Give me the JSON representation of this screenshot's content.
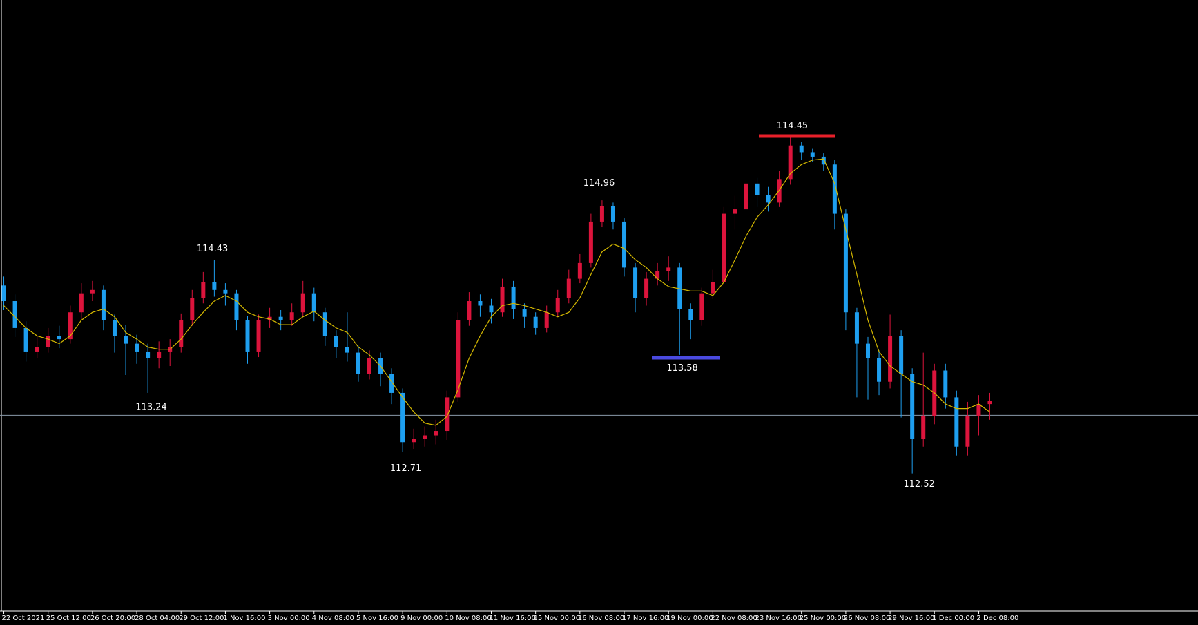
{
  "chart_data": {
    "type": "candlestick",
    "categories": [
      "22 Oct 2021",
      null,
      null,
      null,
      "25 Oct 12:00",
      null,
      null,
      null,
      "26 Oct 20:00",
      null,
      null,
      null,
      "28 Oct 04:00",
      null,
      null,
      null,
      "29 Oct 12:00",
      null,
      null,
      null,
      "1 Nov 16:00",
      null,
      null,
      null,
      "3 Nov 00:00",
      null,
      null,
      null,
      "4 Nov 08:00",
      null,
      null,
      null,
      "5 Nov 16:00",
      null,
      null,
      null,
      "9 Nov 00:00",
      null,
      null,
      null,
      "10 Nov 08:00",
      null,
      null,
      null,
      "11 Nov 16:00",
      null,
      null,
      null,
      "15 Nov 00:00",
      null,
      null,
      null,
      "16 Nov 08:00",
      null,
      null,
      null,
      "17 Nov 16:00",
      null,
      null,
      null,
      "19 Nov 00:00",
      null,
      null,
      null,
      "22 Nov 08:00",
      null,
      null,
      null,
      "23 Nov 16:00",
      null,
      null,
      null,
      "25 Nov 00:00",
      null,
      null,
      null,
      "26 Nov 08:00",
      null,
      null,
      null,
      "29 Nov 16:00",
      null,
      null,
      null,
      "1 Dec 00:00",
      null,
      null,
      null,
      "2 Dec 08:00",
      null
    ],
    "open": [
      114.2,
      114.06,
      113.82,
      113.61,
      113.65,
      113.75,
      113.72,
      113.96,
      114.13,
      114.16,
      113.89,
      113.75,
      113.68,
      113.61,
      113.55,
      113.61,
      113.65,
      113.89,
      114.09,
      114.23,
      114.16,
      114.13,
      113.89,
      113.61,
      113.89,
      113.92,
      113.89,
      113.96,
      114.13,
      113.96,
      113.75,
      113.65,
      113.6,
      113.41,
      113.55,
      113.41,
      113.24,
      112.8,
      112.83,
      112.86,
      112.9,
      113.2,
      113.89,
      114.06,
      114.02,
      113.96,
      114.19,
      113.99,
      113.92,
      113.82,
      113.96,
      114.09,
      114.26,
      114.4,
      114.77,
      114.91,
      114.77,
      114.36,
      114.09,
      114.26,
      114.33,
      114.36,
      113.99,
      113.89,
      114.13,
      114.23,
      114.84,
      114.88,
      115.11,
      115.01,
      114.94,
      115.15,
      115.45,
      115.39,
      115.35,
      115.28,
      114.84,
      113.96,
      113.68,
      113.55,
      113.34,
      113.75,
      113.41,
      112.83,
      113.03,
      113.44,
      113.2,
      112.76,
      113.03,
      113.14
    ],
    "high": [
      114.28,
      114.12,
      113.88,
      113.75,
      113.82,
      113.84,
      114.02,
      114.22,
      114.24,
      114.2,
      113.94,
      113.85,
      113.76,
      113.68,
      113.7,
      113.72,
      113.95,
      114.16,
      114.32,
      114.43,
      114.22,
      114.16,
      113.93,
      113.94,
      114.0,
      113.98,
      114.04,
      114.24,
      114.18,
      114.0,
      113.8,
      113.96,
      113.66,
      113.62,
      113.6,
      113.46,
      113.28,
      112.92,
      112.94,
      113.0,
      113.26,
      113.96,
      114.14,
      114.12,
      114.08,
      114.26,
      114.24,
      114.04,
      113.96,
      114.02,
      114.16,
      114.34,
      114.48,
      114.84,
      114.96,
      114.94,
      114.8,
      114.4,
      114.32,
      114.4,
      114.46,
      114.4,
      114.04,
      114.18,
      114.34,
      114.9,
      115.0,
      115.18,
      115.16,
      115.08,
      115.22,
      115.52,
      115.48,
      115.42,
      115.38,
      115.32,
      114.88,
      114.0,
      113.74,
      113.62,
      113.94,
      113.8,
      113.46,
      113.6,
      113.5,
      113.5,
      113.26,
      113.16,
      113.22,
      113.24
    ],
    "low": [
      113.98,
      113.74,
      113.52,
      113.55,
      113.6,
      113.64,
      113.68,
      113.9,
      114.06,
      113.8,
      113.6,
      113.4,
      113.5,
      113.24,
      113.46,
      113.48,
      113.6,
      113.84,
      114.04,
      114.1,
      114.02,
      113.8,
      113.5,
      113.56,
      113.82,
      113.8,
      113.84,
      113.92,
      113.88,
      113.66,
      113.55,
      113.52,
      113.34,
      113.36,
      113.3,
      113.14,
      112.71,
      112.74,
      112.76,
      112.78,
      112.82,
      113.16,
      113.84,
      113.92,
      113.86,
      113.92,
      113.9,
      113.82,
      113.76,
      113.78,
      113.92,
      114.04,
      114.22,
      114.36,
      114.72,
      114.7,
      114.28,
      113.96,
      114.02,
      114.2,
      114.24,
      113.58,
      113.72,
      113.84,
      114.08,
      114.2,
      114.7,
      114.8,
      114.9,
      114.86,
      114.9,
      115.1,
      115.32,
      115.3,
      115.22,
      114.7,
      113.8,
      113.2,
      113.18,
      113.22,
      113.28,
      113.02,
      112.52,
      112.76,
      112.96,
      113.1,
      112.68,
      112.68,
      112.86,
      113.0
    ],
    "close": [
      114.06,
      113.82,
      113.61,
      113.65,
      113.75,
      113.72,
      113.96,
      114.13,
      114.16,
      113.89,
      113.75,
      113.68,
      113.61,
      113.55,
      113.61,
      113.65,
      113.89,
      114.09,
      114.23,
      114.16,
      114.13,
      113.89,
      113.61,
      113.89,
      113.92,
      113.89,
      113.96,
      114.13,
      113.96,
      113.75,
      113.65,
      113.6,
      113.41,
      113.55,
      113.41,
      113.24,
      112.8,
      112.83,
      112.86,
      112.9,
      113.2,
      113.89,
      114.06,
      114.02,
      113.96,
      114.19,
      113.99,
      113.92,
      113.82,
      113.96,
      114.09,
      114.26,
      114.4,
      114.77,
      114.91,
      114.77,
      114.36,
      114.09,
      114.26,
      114.33,
      114.36,
      113.99,
      113.89,
      114.13,
      114.23,
      114.84,
      114.88,
      115.11,
      115.01,
      114.94,
      115.15,
      115.45,
      115.39,
      115.35,
      115.28,
      114.84,
      113.96,
      113.68,
      113.55,
      113.34,
      113.75,
      113.41,
      112.83,
      113.03,
      113.44,
      113.2,
      112.76,
      113.03,
      113.14,
      113.17
    ],
    "ma": [
      114.02,
      113.92,
      113.82,
      113.75,
      113.72,
      113.68,
      113.75,
      113.89,
      113.96,
      113.99,
      113.92,
      113.78,
      113.72,
      113.65,
      113.63,
      113.63,
      113.72,
      113.85,
      113.96,
      114.06,
      114.11,
      114.06,
      113.96,
      113.92,
      113.9,
      113.85,
      113.85,
      113.92,
      113.97,
      113.89,
      113.82,
      113.78,
      113.65,
      113.58,
      113.48,
      113.34,
      113.2,
      113.07,
      112.97,
      112.95,
      113.03,
      113.27,
      113.55,
      113.75,
      113.92,
      114.02,
      114.04,
      114.02,
      113.99,
      113.96,
      113.92,
      113.96,
      114.09,
      114.3,
      114.5,
      114.57,
      114.53,
      114.43,
      114.36,
      114.26,
      114.19,
      114.17,
      114.15,
      114.15,
      114.11,
      114.23,
      114.43,
      114.64,
      114.81,
      114.92,
      115.05,
      115.2,
      115.28,
      115.32,
      115.33,
      115.11,
      114.7,
      114.3,
      113.89,
      113.61,
      113.48,
      113.41,
      113.34,
      113.31,
      113.24,
      113.14,
      113.1,
      113.1,
      113.14,
      113.07
    ],
    "up_color": "#dc143c",
    "down_color": "#1e9ff0",
    "ma_color": "#d4b800",
    "price_line": 113.04,
    "ylim": [
      111.29,
      116.75
    ],
    "annotations": [
      "114.43",
      "113.24",
      "112.71",
      "114.96",
      "113.58",
      "114.45",
      "112.52"
    ]
  }
}
